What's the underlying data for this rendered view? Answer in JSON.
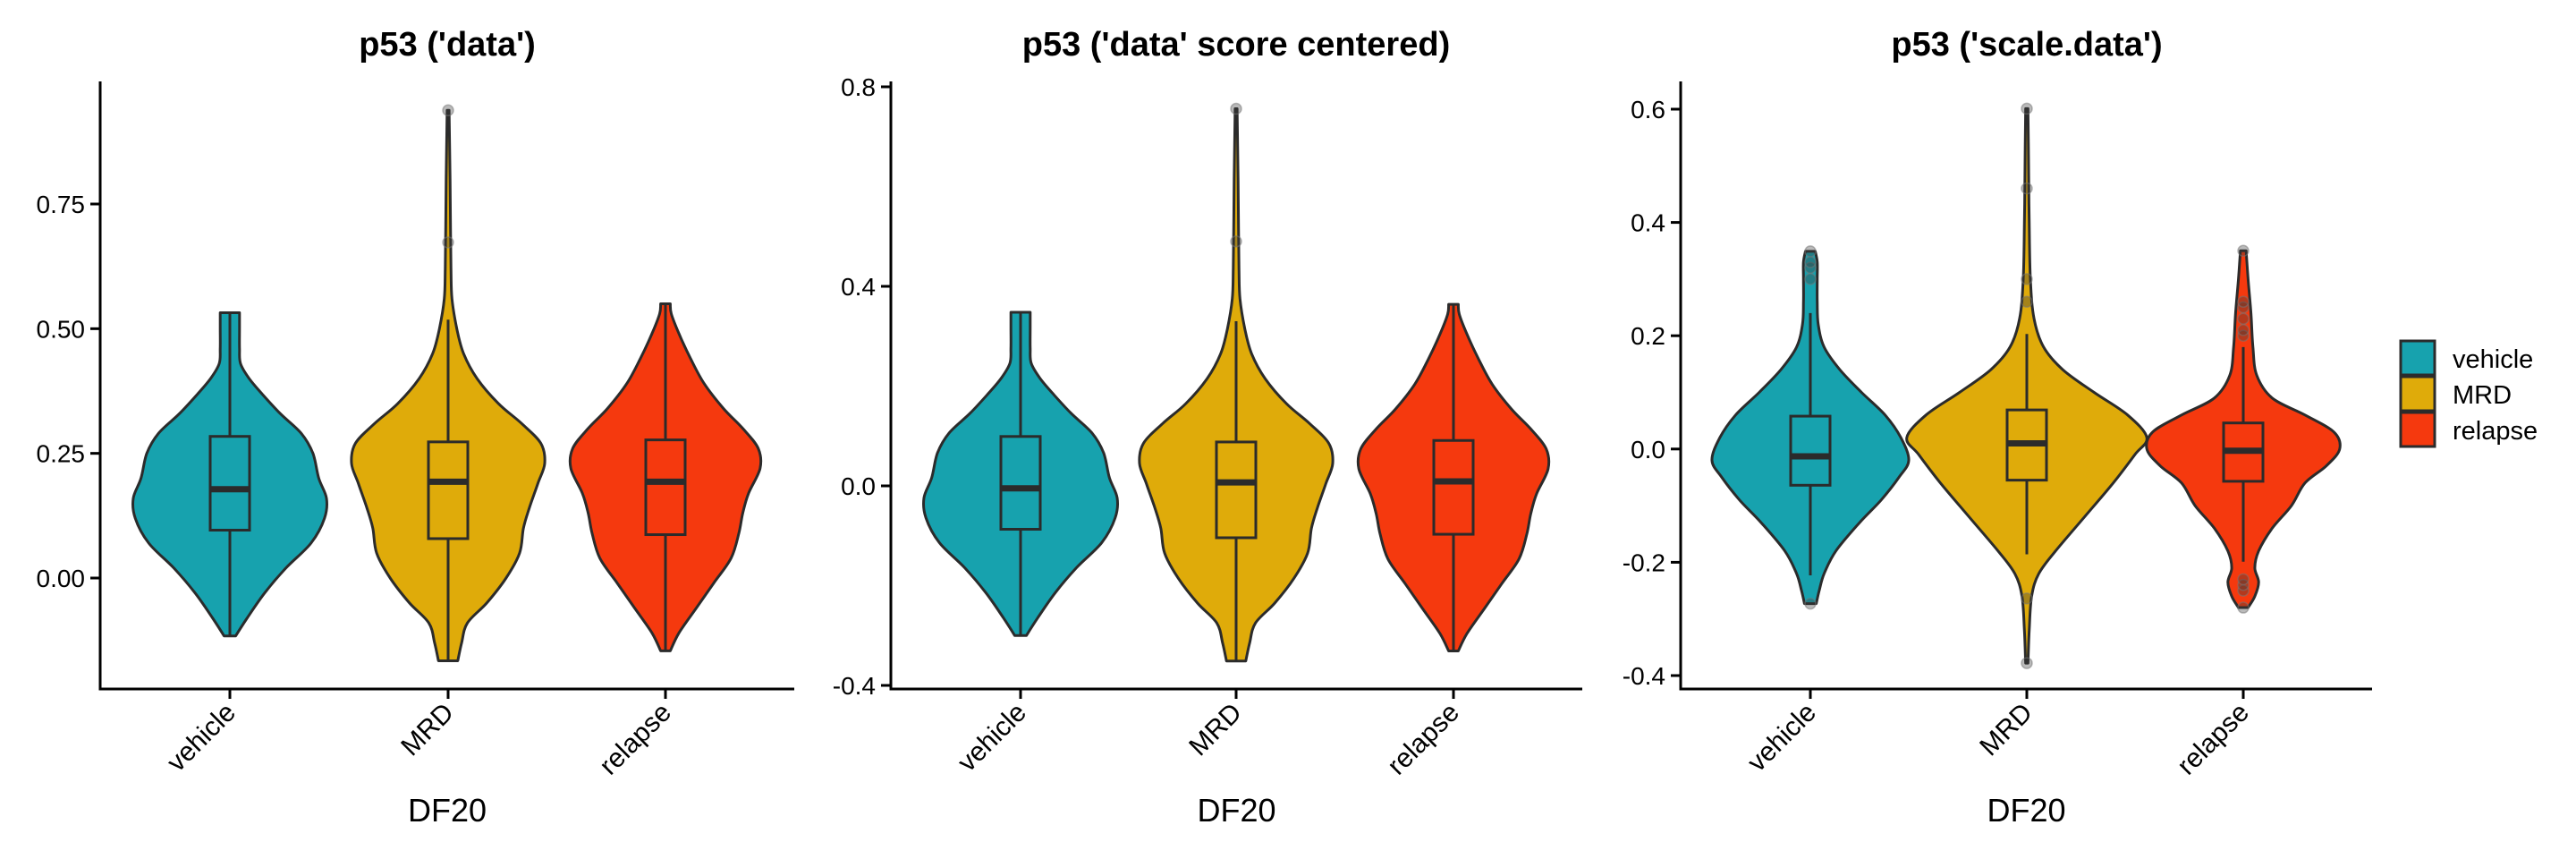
{
  "chart_data": [
    {
      "type": "violin",
      "title": "p53 ('data')",
      "xlabel": "DF20",
      "ylabel": "",
      "ylim": [
        -0.17,
        0.97
      ],
      "yticks": [
        0.0,
        0.25,
        0.5,
        0.75
      ],
      "ytick_labels": [
        "0.00",
        "0.25",
        "0.50",
        "0.75"
      ],
      "categories": [
        "vehicle",
        "MRD",
        "relapse"
      ],
      "grid": false,
      "series": [
        {
          "name": "vehicle",
          "color": "#17A2AE",
          "min": -0.116,
          "max": 0.532,
          "box": {
            "q1": 0.096,
            "median": 0.178,
            "q3": 0.284,
            "whisker_low": -0.116,
            "whisker_high": 0.532
          },
          "outliers": [],
          "density": [
            [
              -0.116,
              0.06
            ],
            [
              -0.08,
              0.18
            ],
            [
              -0.03,
              0.36
            ],
            [
              0.02,
              0.58
            ],
            [
              0.07,
              0.84
            ],
            [
              0.12,
              0.98
            ],
            [
              0.16,
              1.0
            ],
            [
              0.2,
              0.92
            ],
            [
              0.25,
              0.86
            ],
            [
              0.29,
              0.74
            ],
            [
              0.33,
              0.52
            ],
            [
              0.37,
              0.33
            ],
            [
              0.4,
              0.2
            ],
            [
              0.43,
              0.11
            ],
            [
              0.46,
              0.1
            ],
            [
              0.5,
              0.1
            ],
            [
              0.532,
              0.1
            ]
          ]
        },
        {
          "name": "MRD",
          "color": "#DFAB0A",
          "min": -0.166,
          "max": 0.938,
          "box": {
            "q1": 0.079,
            "median": 0.193,
            "q3": 0.273,
            "whisker_low": -0.166,
            "whisker_high": 0.518
          },
          "outliers": [
            0.673,
            0.938
          ],
          "density": [
            [
              -0.166,
              0.1
            ],
            [
              -0.13,
              0.14
            ],
            [
              -0.09,
              0.2
            ],
            [
              -0.05,
              0.4
            ],
            [
              0.0,
              0.6
            ],
            [
              0.05,
              0.74
            ],
            [
              0.1,
              0.78
            ],
            [
              0.14,
              0.84
            ],
            [
              0.19,
              0.93
            ],
            [
              0.23,
              1.0
            ],
            [
              0.27,
              0.96
            ],
            [
              0.31,
              0.76
            ],
            [
              0.35,
              0.52
            ],
            [
              0.4,
              0.3
            ],
            [
              0.45,
              0.16
            ],
            [
              0.5,
              0.09
            ],
            [
              0.56,
              0.04
            ],
            [
              0.62,
              0.03
            ],
            [
              0.7,
              0.025
            ],
            [
              0.8,
              0.02
            ],
            [
              0.938,
              0.01
            ]
          ]
        },
        {
          "name": "relapse",
          "color": "#F5390E",
          "min": -0.146,
          "max": 0.55,
          "box": {
            "q1": 0.087,
            "median": 0.193,
            "q3": 0.277,
            "whisker_low": -0.146,
            "whisker_high": 0.55
          },
          "outliers": [],
          "density": [
            [
              -0.146,
              0.05
            ],
            [
              -0.11,
              0.14
            ],
            [
              -0.06,
              0.32
            ],
            [
              -0.01,
              0.5
            ],
            [
              0.04,
              0.68
            ],
            [
              0.09,
              0.76
            ],
            [
              0.13,
              0.8
            ],
            [
              0.17,
              0.86
            ],
            [
              0.22,
              0.98
            ],
            [
              0.26,
              0.96
            ],
            [
              0.3,
              0.8
            ],
            [
              0.34,
              0.6
            ],
            [
              0.39,
              0.4
            ],
            [
              0.44,
              0.26
            ],
            [
              0.49,
              0.14
            ],
            [
              0.53,
              0.06
            ],
            [
              0.55,
              0.05
            ]
          ]
        }
      ]
    },
    {
      "type": "violin",
      "title": "p53 ('data' score centered)",
      "xlabel": "DF20",
      "ylabel": "",
      "ylim": [
        -0.41,
        0.81
      ],
      "yticks": [
        -0.4,
        0.0,
        0.4,
        0.8
      ],
      "ytick_labels": [
        "-0.4",
        "0.0",
        "0.4",
        "0.8"
      ],
      "categories": [
        "vehicle",
        "MRD",
        "relapse"
      ],
      "grid": false,
      "series": [
        {
          "name": "vehicle",
          "color": "#17A2AE",
          "min": -0.3,
          "max": 0.348,
          "box": {
            "q1": -0.087,
            "median": -0.005,
            "q3": 0.099,
            "whisker_low": -0.3,
            "whisker_high": 0.348
          },
          "outliers": [],
          "density": [
            [
              -0.3,
              0.06
            ],
            [
              -0.264,
              0.18
            ],
            [
              -0.214,
              0.36
            ],
            [
              -0.164,
              0.58
            ],
            [
              -0.114,
              0.84
            ],
            [
              -0.064,
              0.98
            ],
            [
              -0.024,
              1.0
            ],
            [
              0.016,
              0.92
            ],
            [
              0.066,
              0.86
            ],
            [
              0.106,
              0.74
            ],
            [
              0.146,
              0.52
            ],
            [
              0.186,
              0.33
            ],
            [
              0.216,
              0.2
            ],
            [
              0.246,
              0.11
            ],
            [
              0.276,
              0.1
            ],
            [
              0.316,
              0.1
            ],
            [
              0.348,
              0.1
            ]
          ]
        },
        {
          "name": "MRD",
          "color": "#DFAB0A",
          "min": -0.351,
          "max": 0.756,
          "box": {
            "q1": -0.104,
            "median": 0.007,
            "q3": 0.088,
            "whisker_low": -0.351,
            "whisker_high": 0.33
          },
          "outliers": [
            0.49,
            0.756
          ],
          "density": [
            [
              -0.351,
              0.1
            ],
            [
              -0.315,
              0.14
            ],
            [
              -0.275,
              0.2
            ],
            [
              -0.235,
              0.4
            ],
            [
              -0.185,
              0.6
            ],
            [
              -0.135,
              0.74
            ],
            [
              -0.085,
              0.78
            ],
            [
              -0.045,
              0.84
            ],
            [
              0.005,
              0.93
            ],
            [
              0.045,
              1.0
            ],
            [
              0.085,
              0.96
            ],
            [
              0.125,
              0.76
            ],
            [
              0.165,
              0.52
            ],
            [
              0.215,
              0.3
            ],
            [
              0.265,
              0.16
            ],
            [
              0.315,
              0.09
            ],
            [
              0.375,
              0.04
            ],
            [
              0.435,
              0.03
            ],
            [
              0.515,
              0.025
            ],
            [
              0.615,
              0.02
            ],
            [
              0.756,
              0.01
            ]
          ]
        },
        {
          "name": "relapse",
          "color": "#F5390E",
          "min": -0.331,
          "max": 0.364,
          "box": {
            "q1": -0.097,
            "median": 0.009,
            "q3": 0.091,
            "whisker_low": -0.331,
            "whisker_high": 0.364
          },
          "outliers": [],
          "density": [
            [
              -0.331,
              0.05
            ],
            [
              -0.296,
              0.14
            ],
            [
              -0.246,
              0.32
            ],
            [
              -0.196,
              0.5
            ],
            [
              -0.146,
              0.68
            ],
            [
              -0.096,
              0.76
            ],
            [
              -0.056,
              0.8
            ],
            [
              -0.016,
              0.86
            ],
            [
              0.034,
              0.98
            ],
            [
              0.074,
              0.96
            ],
            [
              0.114,
              0.8
            ],
            [
              0.154,
              0.6
            ],
            [
              0.204,
              0.4
            ],
            [
              0.254,
              0.26
            ],
            [
              0.304,
              0.14
            ],
            [
              0.344,
              0.06
            ],
            [
              0.364,
              0.05
            ]
          ]
        }
      ]
    },
    {
      "type": "violin",
      "title": "p53 ('scale.data')",
      "xlabel": "DF20",
      "ylabel": "",
      "ylim": [
        -0.425,
        0.65
      ],
      "yticks": [
        -0.4,
        -0.2,
        0.0,
        0.2,
        0.4,
        0.6
      ],
      "ytick_labels": [
        "-0.4",
        "-0.2",
        "0.0",
        "0.2",
        "0.4",
        "0.6"
      ],
      "categories": [
        "vehicle",
        "MRD",
        "relapse"
      ],
      "grid": false,
      "series": [
        {
          "name": "vehicle",
          "color": "#17A2AE",
          "min": -0.273,
          "max": 0.349,
          "box": {
            "q1": -0.064,
            "median": -0.013,
            "q3": 0.058,
            "whisker_low": -0.223,
            "whisker_high": 0.24
          },
          "outliers": [
            -0.273,
            0.3,
            0.32,
            0.33,
            0.349
          ],
          "density": [
            [
              -0.273,
              0.06
            ],
            [
              -0.25,
              0.09
            ],
            [
              -0.22,
              0.14
            ],
            [
              -0.18,
              0.26
            ],
            [
              -0.13,
              0.5
            ],
            [
              -0.09,
              0.72
            ],
            [
              -0.05,
              0.9
            ],
            [
              -0.02,
              1.0
            ],
            [
              0.02,
              0.92
            ],
            [
              0.06,
              0.76
            ],
            [
              0.1,
              0.52
            ],
            [
              0.14,
              0.3
            ],
            [
              0.18,
              0.14
            ],
            [
              0.22,
              0.08
            ],
            [
              0.26,
              0.07
            ],
            [
              0.3,
              0.07
            ],
            [
              0.33,
              0.07
            ],
            [
              0.349,
              0.05
            ]
          ]
        },
        {
          "name": "MRD",
          "color": "#DFAB0A",
          "min": -0.378,
          "max": 0.601,
          "box": {
            "q1": -0.055,
            "median": 0.01,
            "q3": 0.069,
            "whisker_low": -0.186,
            "whisker_high": 0.203
          },
          "outliers": [
            -0.378,
            -0.264,
            0.26,
            0.3,
            0.46,
            0.601
          ],
          "density": [
            [
              -0.378,
              0.01
            ],
            [
              -0.32,
              0.02
            ],
            [
              -0.26,
              0.04
            ],
            [
              -0.22,
              0.1
            ],
            [
              -0.18,
              0.24
            ],
            [
              -0.12,
              0.48
            ],
            [
              -0.06,
              0.72
            ],
            [
              -0.01,
              0.9
            ],
            [
              0.02,
              1.0
            ],
            [
              0.06,
              0.84
            ],
            [
              0.1,
              0.56
            ],
            [
              0.14,
              0.3
            ],
            [
              0.18,
              0.14
            ],
            [
              0.23,
              0.06
            ],
            [
              0.3,
              0.03
            ],
            [
              0.4,
              0.02
            ],
            [
              0.5,
              0.015
            ],
            [
              0.601,
              0.01
            ]
          ]
        },
        {
          "name": "relapse",
          "color": "#F5390E",
          "min": -0.28,
          "max": 0.35,
          "box": {
            "q1": -0.057,
            "median": -0.003,
            "q3": 0.046,
            "whisker_low": -0.199,
            "whisker_high": 0.18
          },
          "outliers": [
            -0.28,
            -0.25,
            -0.24,
            -0.23,
            0.2,
            0.21,
            0.23,
            0.25,
            0.26,
            0.35
          ],
          "density": [
            [
              -0.28,
              0.05
            ],
            [
              -0.26,
              0.12
            ],
            [
              -0.235,
              0.16
            ],
            [
              -0.21,
              0.12
            ],
            [
              -0.18,
              0.16
            ],
            [
              -0.14,
              0.3
            ],
            [
              -0.1,
              0.5
            ],
            [
              -0.06,
              0.64
            ],
            [
              -0.03,
              0.86
            ],
            [
              0.0,
              1.0
            ],
            [
              0.03,
              0.94
            ],
            [
              0.06,
              0.64
            ],
            [
              0.09,
              0.3
            ],
            [
              0.13,
              0.14
            ],
            [
              0.18,
              0.1
            ],
            [
              0.24,
              0.08
            ],
            [
              0.3,
              0.05
            ],
            [
              0.35,
              0.03
            ]
          ]
        }
      ]
    }
  ],
  "legend": {
    "placement": "right",
    "items": [
      {
        "label": "vehicle",
        "color": "#17A2AE"
      },
      {
        "label": "MRD",
        "color": "#DFAB0A"
      },
      {
        "label": "relapse",
        "color": "#F5390E"
      }
    ]
  }
}
